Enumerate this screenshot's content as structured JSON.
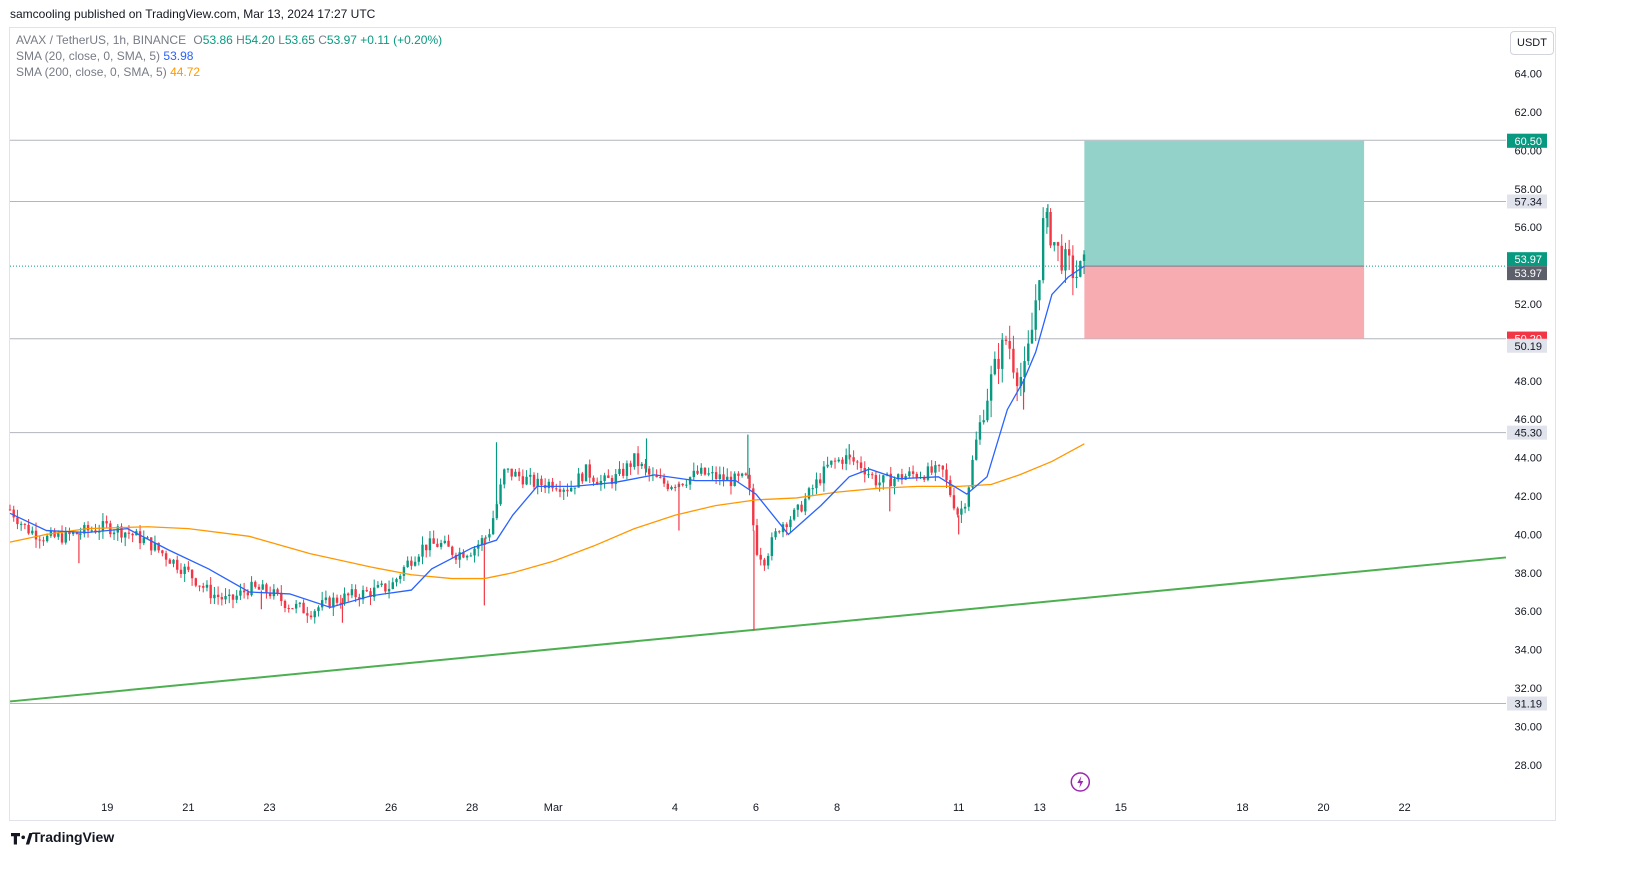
{
  "header": {
    "published": "samcooling published on TradingView.com, Mar 13, 2024 17:27 UTC"
  },
  "legend": {
    "symbol": "AVAX / TetherUS, 1h, BINANCE",
    "o_label": "O",
    "o": "53.86",
    "h_label": "H",
    "h": "54.20",
    "l_label": "L",
    "l": "53.65",
    "c_label": "C",
    "c": "53.97",
    "change": "+0.11 (+0.20%)",
    "sma20_label": "SMA (20, close, 0, SMA, 5)",
    "sma20_value": "53.98",
    "sma200_label": "SMA (200, close, 0, SMA, 5)",
    "sma200_value": "44.72"
  },
  "currency_button": "USDT",
  "footer": {
    "logo_text": "TradingView"
  },
  "colors": {
    "up": "#089981",
    "down": "#f23645",
    "sma20": "#2962ff",
    "sma200": "#ff9800",
    "trendline": "#4caf50",
    "target_zone": "#93d2c8",
    "stop_zone": "#f7acb1",
    "price_tag_green": "#089981",
    "price_tag_red": "#f23645",
    "price_tag_grey": "#e0e3eb"
  },
  "chart_data": {
    "type": "candlestick",
    "symbol": "AVAX / TetherUS",
    "interval": "1h",
    "exchange": "BINANCE",
    "y_axis_ticks": [
      "28.00",
      "30.00",
      "32.00",
      "34.00",
      "36.00",
      "38.00",
      "40.00",
      "42.00",
      "44.00",
      "46.00",
      "48.00",
      "52.00",
      "56.00",
      "58.00",
      "60.00",
      "62.00",
      "64.00"
    ],
    "x_axis_ticks": [
      {
        "label": "19",
        "day": 19
      },
      {
        "label": "21",
        "day": 21
      },
      {
        "label": "23",
        "day": 23
      },
      {
        "label": "26",
        "day": 26
      },
      {
        "label": "28",
        "day": 28
      },
      {
        "label": "Mar",
        "day": 30
      },
      {
        "label": "4",
        "day": 33
      },
      {
        "label": "6",
        "day": 35
      },
      {
        "label": "8",
        "day": 37
      },
      {
        "label": "11",
        "day": 40
      },
      {
        "label": "13",
        "day": 42
      },
      {
        "label": "15",
        "day": 44
      },
      {
        "label": "18",
        "day": 47
      },
      {
        "label": "20",
        "day": 49
      },
      {
        "label": "22",
        "day": 51
      }
    ],
    "ylim": [
      27.0,
      65.5
    ],
    "xlim": [
      16.6,
      53.5
    ],
    "price_path": [
      [
        16.6,
        41.3
      ],
      [
        17.0,
        40.3
      ],
      [
        17.5,
        39.8
      ],
      [
        18.0,
        39.9
      ],
      [
        18.5,
        40.2
      ],
      [
        19.0,
        40.4
      ],
      [
        19.5,
        40.1
      ],
      [
        20.0,
        39.6
      ],
      [
        20.5,
        38.8
      ],
      [
        21.0,
        38.0
      ],
      [
        21.5,
        37.0
      ],
      [
        22.0,
        36.5
      ],
      [
        22.5,
        37.2
      ],
      [
        23.0,
        37.0
      ],
      [
        23.5,
        36.3
      ],
      [
        24.0,
        36.0
      ],
      [
        24.5,
        36.5
      ],
      [
        25.0,
        36.8
      ],
      [
        25.5,
        37.0
      ],
      [
        26.0,
        37.3
      ],
      [
        26.4,
        38.5
      ],
      [
        26.8,
        39.4
      ],
      [
        27.2,
        39.5
      ],
      [
        27.6,
        39.0
      ],
      [
        28.0,
        39.2
      ],
      [
        28.4,
        40.0
      ],
      [
        28.6,
        41.5
      ],
      [
        28.8,
        43.3
      ],
      [
        29.2,
        43.0
      ],
      [
        29.6,
        42.6
      ],
      [
        30.0,
        42.7
      ],
      [
        30.4,
        42.4
      ],
      [
        30.8,
        43.3
      ],
      [
        31.2,
        42.7
      ],
      [
        31.6,
        43.0
      ],
      [
        32.0,
        43.9
      ],
      [
        32.4,
        43.0
      ],
      [
        32.8,
        42.6
      ],
      [
        33.2,
        42.8
      ],
      [
        33.6,
        43.2
      ],
      [
        34.0,
        43.0
      ],
      [
        34.4,
        42.8
      ],
      [
        34.8,
        42.9
      ],
      [
        35.0,
        39.3
      ],
      [
        35.2,
        38.7
      ],
      [
        35.6,
        40.5
      ],
      [
        36.0,
        41.1
      ],
      [
        36.4,
        42.4
      ],
      [
        36.8,
        43.6
      ],
      [
        37.2,
        44.0
      ],
      [
        37.6,
        43.6
      ],
      [
        38.0,
        42.7
      ],
      [
        38.4,
        42.9
      ],
      [
        38.8,
        43.1
      ],
      [
        39.2,
        43.2
      ],
      [
        39.6,
        43.3
      ],
      [
        39.8,
        42.1
      ],
      [
        40.0,
        41.0
      ],
      [
        40.2,
        42.0
      ],
      [
        40.4,
        44.5
      ],
      [
        40.6,
        46.5
      ],
      [
        40.8,
        48.0
      ],
      [
        41.0,
        49.3
      ],
      [
        41.2,
        50.3
      ],
      [
        41.4,
        48.5
      ],
      [
        41.6,
        48.1
      ],
      [
        41.8,
        50.5
      ],
      [
        42.0,
        54.0
      ],
      [
        42.1,
        56.5
      ],
      [
        42.3,
        55.5
      ],
      [
        42.5,
        54.5
      ],
      [
        42.7,
        54.0
      ],
      [
        42.9,
        53.5
      ],
      [
        43.1,
        53.97
      ]
    ],
    "spikes": [
      {
        "day": 18.3,
        "low": 38.5
      },
      {
        "day": 22.8,
        "low": 36.1
      },
      {
        "day": 24.8,
        "low": 35.4
      },
      {
        "day": 28.3,
        "low": 36.3
      },
      {
        "day": 28.6,
        "high": 44.8
      },
      {
        "day": 32.3,
        "high": 45.0
      },
      {
        "day": 33.1,
        "low": 40.2
      },
      {
        "day": 34.8,
        "high": 45.2
      },
      {
        "day": 34.95,
        "low": 35.0
      },
      {
        "day": 37.3,
        "high": 44.7
      },
      {
        "day": 38.3,
        "low": 41.2
      },
      {
        "day": 40.0,
        "low": 40.0
      },
      {
        "day": 42.2,
        "high": 57.2
      },
      {
        "day": 41.6,
        "low": 46.5
      }
    ],
    "sma200_path": [
      [
        16.6,
        39.6
      ],
      [
        17.5,
        40.0
      ],
      [
        18.5,
        40.3
      ],
      [
        20.0,
        40.4
      ],
      [
        21.0,
        40.3
      ],
      [
        22.5,
        39.9
      ],
      [
        24.0,
        39.0
      ],
      [
        25.5,
        38.3
      ],
      [
        26.5,
        37.9
      ],
      [
        27.5,
        37.7
      ],
      [
        28.3,
        37.7
      ],
      [
        29.0,
        38.0
      ],
      [
        30.0,
        38.6
      ],
      [
        31.0,
        39.4
      ],
      [
        32.0,
        40.3
      ],
      [
        33.0,
        41.0
      ],
      [
        34.0,
        41.5
      ],
      [
        35.0,
        41.8
      ],
      [
        36.0,
        41.9
      ],
      [
        37.0,
        42.2
      ],
      [
        38.0,
        42.4
      ],
      [
        39.0,
        42.5
      ],
      [
        40.0,
        42.5
      ],
      [
        40.8,
        42.6
      ],
      [
        41.5,
        43.1
      ],
      [
        42.3,
        43.8
      ],
      [
        43.1,
        44.72
      ]
    ],
    "sma20_path": [
      [
        16.6,
        41.1
      ],
      [
        17.5,
        40.2
      ],
      [
        18.5,
        40.1
      ],
      [
        19.5,
        40.3
      ],
      [
        20.5,
        39.2
      ],
      [
        21.5,
        38.2
      ],
      [
        22.5,
        37.0
      ],
      [
        23.5,
        36.9
      ],
      [
        24.5,
        36.2
      ],
      [
        25.5,
        36.8
      ],
      [
        26.5,
        37.1
      ],
      [
        27.0,
        38.2
      ],
      [
        28.0,
        39.3
      ],
      [
        28.6,
        39.7
      ],
      [
        29.0,
        41.0
      ],
      [
        29.6,
        42.5
      ],
      [
        30.5,
        42.5
      ],
      [
        31.5,
        42.7
      ],
      [
        32.5,
        43.1
      ],
      [
        33.5,
        42.8
      ],
      [
        34.5,
        42.8
      ],
      [
        35.0,
        42.1
      ],
      [
        35.8,
        40.0
      ],
      [
        36.6,
        41.5
      ],
      [
        37.3,
        43.0
      ],
      [
        37.8,
        43.4
      ],
      [
        38.5,
        42.9
      ],
      [
        39.5,
        43.0
      ],
      [
        40.2,
        42.1
      ],
      [
        40.7,
        43.0
      ],
      [
        41.2,
        46.5
      ],
      [
        41.6,
        48.0
      ],
      [
        41.9,
        49.5
      ],
      [
        42.3,
        52.5
      ],
      [
        42.7,
        53.4
      ],
      [
        43.1,
        53.98
      ]
    ],
    "trendline": {
      "start": [
        16.6,
        31.3
      ],
      "end": [
        53.5,
        38.8
      ]
    },
    "position": {
      "entry": 53.97,
      "target": 60.5,
      "stop": 50.2,
      "start_day": 43.1,
      "end_day": 50.0
    },
    "horizontal_levels": [
      60.53,
      57.34,
      50.19,
      45.3,
      31.19
    ],
    "axis_labels": [
      {
        "value": 60.53,
        "text": "60.53",
        "style": "grey"
      },
      {
        "value": 60.5,
        "text": "60.50",
        "style": "green"
      },
      {
        "value": 57.34,
        "text": "57.34",
        "style": "grey"
      },
      {
        "value": 53.97,
        "text": "53.97",
        "style": "green",
        "offset": -1
      },
      {
        "value": 53.97,
        "text": "53.97",
        "style": "dark",
        "offset": 1
      },
      {
        "value": 50.2,
        "text": "50.20",
        "style": "red"
      },
      {
        "value": 50.19,
        "text": "50.19",
        "style": "grey",
        "offset": 1
      },
      {
        "value": 45.3,
        "text": "45.30",
        "style": "grey"
      },
      {
        "value": 31.19,
        "text": "31.19",
        "style": "grey"
      }
    ],
    "event_marker_day": 43.0
  }
}
